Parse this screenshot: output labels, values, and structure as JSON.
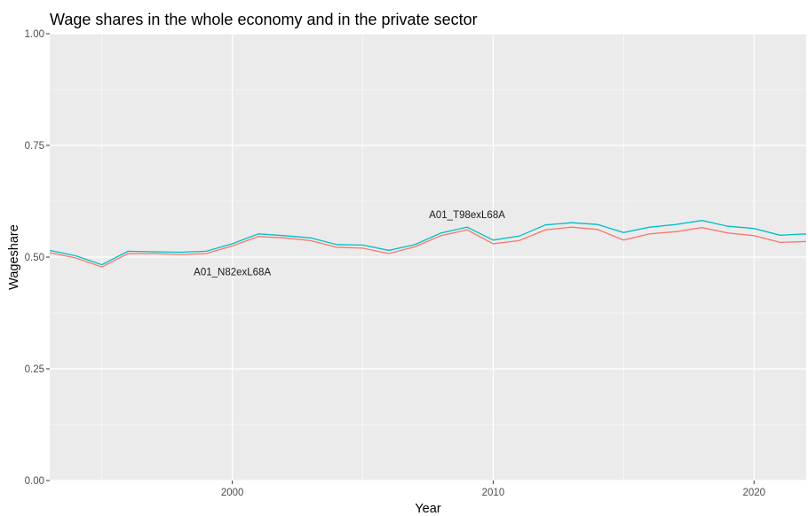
{
  "chart_data": {
    "type": "line",
    "title": "Wage shares in the whole economy and in the private sector",
    "xlabel": "Year",
    "ylabel": "Wageshare",
    "xlim": [
      1993,
      2022
    ],
    "ylim": [
      0,
      1
    ],
    "x_ticks": [
      2000,
      2010,
      2020
    ],
    "x_tick_labels": [
      "2000",
      "2010",
      "2020"
    ],
    "y_ticks": [
      0,
      0.25,
      0.5,
      0.75,
      1.0
    ],
    "y_tick_labels": [
      "0.00",
      "0.25",
      "0.50",
      "0.75",
      "1.00"
    ],
    "grid": true,
    "legend": "none",
    "background": "#ebebeb",
    "x": [
      1993,
      1994,
      1995,
      1996,
      1997,
      1998,
      1999,
      2000,
      2001,
      2002,
      2003,
      2004,
      2005,
      2006,
      2007,
      2008,
      2009,
      2010,
      2011,
      2012,
      2013,
      2014,
      2015,
      2016,
      2017,
      2018,
      2019,
      2020,
      2021,
      2022
    ],
    "series": [
      {
        "name": "A01_N82exL68A",
        "color": "#f8766d",
        "values": [
          0.51,
          0.498,
          0.478,
          0.508,
          0.508,
          0.506,
          0.508,
          0.525,
          0.546,
          0.543,
          0.537,
          0.522,
          0.52,
          0.508,
          0.523,
          0.548,
          0.561,
          0.53,
          0.537,
          0.561,
          0.567,
          0.562,
          0.538,
          0.552,
          0.557,
          0.566,
          0.554,
          0.548,
          0.533,
          0.535
        ]
      },
      {
        "name": "A01_T98exL68A",
        "color": "#00bfc4",
        "values": [
          0.515,
          0.503,
          0.483,
          0.513,
          0.512,
          0.511,
          0.513,
          0.53,
          0.552,
          0.548,
          0.543,
          0.528,
          0.527,
          0.515,
          0.528,
          0.554,
          0.567,
          0.538,
          0.547,
          0.572,
          0.577,
          0.573,
          0.555,
          0.567,
          0.573,
          0.582,
          0.569,
          0.564,
          0.549,
          0.552
        ]
      }
    ],
    "annotations": [
      {
        "text": "A01_T98exL68A",
        "x": 2009,
        "y": 0.595
      },
      {
        "text": "A01_N82exL68A",
        "x": 2000,
        "y": 0.467
      }
    ]
  }
}
